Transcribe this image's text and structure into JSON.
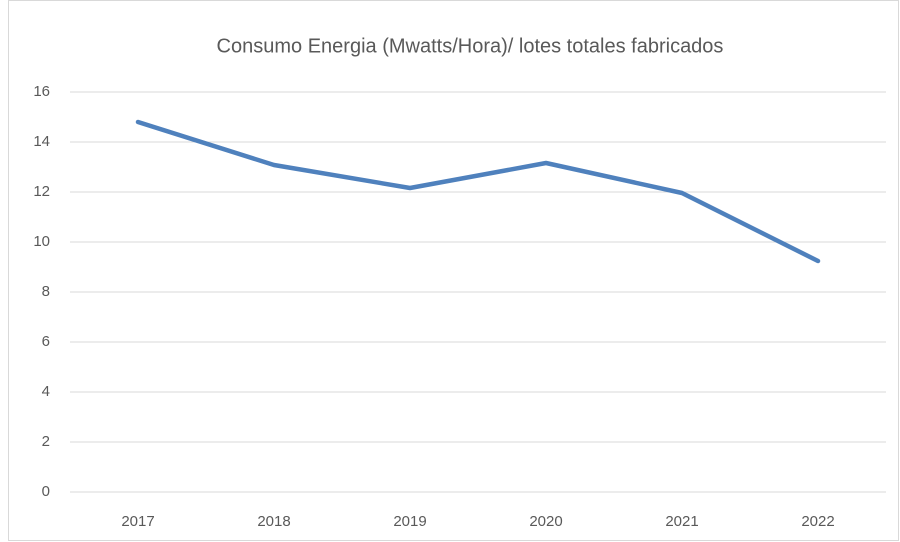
{
  "chart_data": {
    "type": "line",
    "title": "Consumo Energia (Mwatts/Hora)/ lotes totales fabricados",
    "categories": [
      "2017",
      "2018",
      "2019",
      "2020",
      "2021",
      "2022"
    ],
    "series": [
      {
        "color": "#4f81bd",
        "values": [
          14.8,
          13.08,
          12.16,
          13.16,
          11.96,
          9.24
        ]
      }
    ],
    "ylim": [
      0,
      16
    ],
    "yticks": [
      0,
      2,
      4,
      6,
      8,
      10,
      12,
      14,
      16
    ],
    "grid": true
  }
}
